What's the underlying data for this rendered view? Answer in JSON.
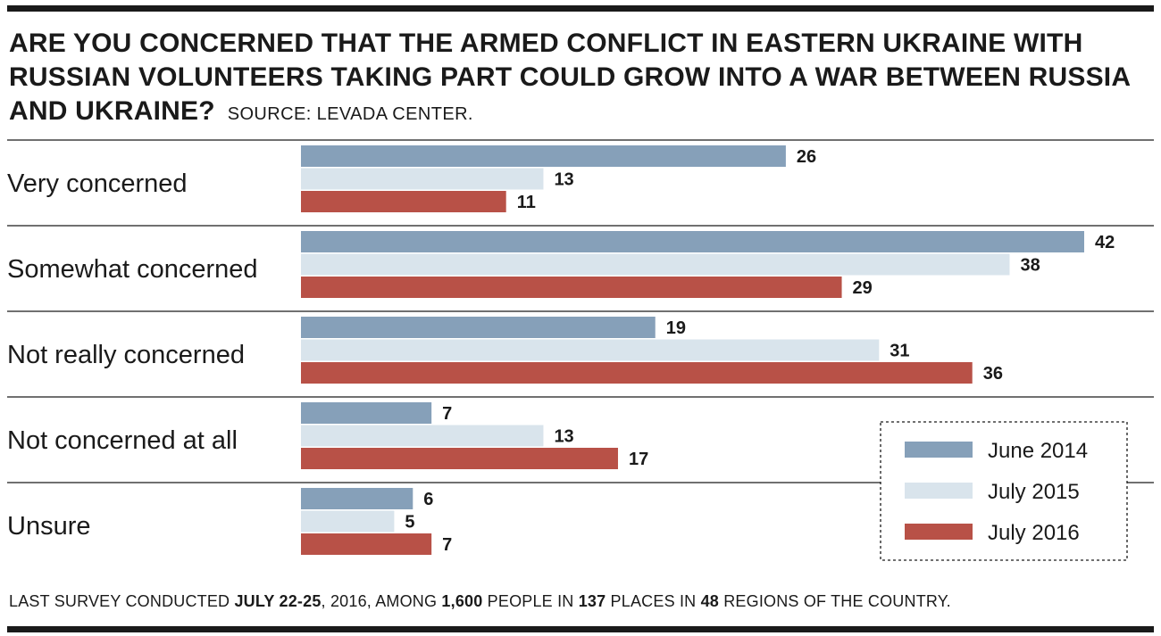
{
  "title": "ARE YOU CONCERNED THAT THE ARMED CONFLICT IN EASTERN UKRAINE WITH RUSSIAN VOLUNTEERS TAKING PART COULD GROW INTO A WAR BETWEEN RUSSIA AND UKRAINE?",
  "source": "SOURCE: LEVADA CENTER.",
  "footer": {
    "p1": "LAST SURVEY CONDUCTED ",
    "b1": "JULY 22-25",
    "p2": ", 2016, AMONG ",
    "b2": "1,600",
    "p3": " PEOPLE IN ",
    "b3": "137",
    "p4": " PLACES IN ",
    "b4": "48",
    "p5": " REGIONS OF THE COUNTRY."
  },
  "chart_data": {
    "type": "bar",
    "orientation": "horizontal",
    "categories": [
      "Very concerned",
      "Somewhat concerned",
      "Not really concerned",
      "Not concerned at all",
      "Unsure"
    ],
    "series": [
      {
        "name": "June 2014",
        "color": "#86a0b9",
        "values": [
          26,
          42,
          19,
          7,
          6
        ]
      },
      {
        "name": "July 2015",
        "color": "#d9e4ec",
        "values": [
          13,
          38,
          31,
          13,
          5
        ]
      },
      {
        "name": "July 2016",
        "color": "#b85147",
        "values": [
          11,
          29,
          36,
          17,
          7
        ]
      }
    ],
    "xlim": [
      0,
      42
    ],
    "grid": false,
    "legend_position": "bottom-right",
    "separator_color": "#1a1a1a"
  }
}
